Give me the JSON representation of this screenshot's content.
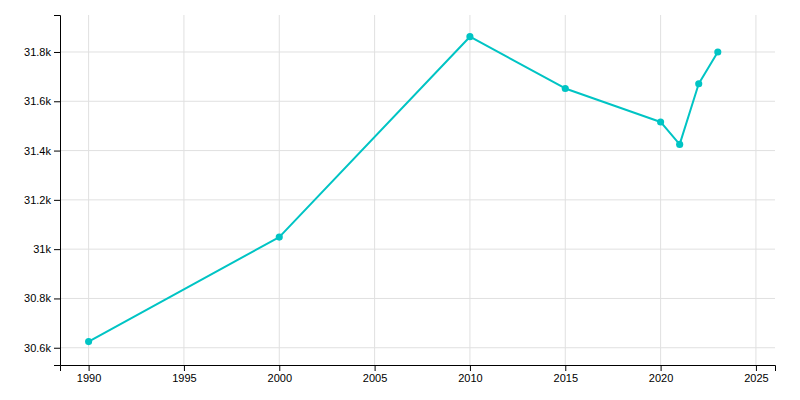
{
  "chart_data": {
    "type": "line",
    "x": [
      1990,
      2000,
      2010,
      2015,
      2020,
      2021,
      2022,
      2023
    ],
    "values": [
      30625,
      31049,
      31862,
      31652,
      31516,
      31425,
      31671,
      31800
    ],
    "color": "#00c4c4",
    "marker": "circle",
    "grid": true,
    "xlim": [
      1988.5,
      2026
    ],
    "ylim": [
      30530,
      31950
    ],
    "xticks": [
      1990,
      1995,
      2000,
      2005,
      2010,
      2015,
      2020,
      2025
    ],
    "yticks": [
      {
        "value": 30600,
        "label": "30.6k"
      },
      {
        "value": 30800,
        "label": "30.8k"
      },
      {
        "value": 31000,
        "label": "31k"
      },
      {
        "value": 31200,
        "label": "31.2k"
      },
      {
        "value": 31400,
        "label": "31.4k"
      },
      {
        "value": 31600,
        "label": "31.6k"
      },
      {
        "value": 31800,
        "label": "31.8k"
      }
    ]
  }
}
